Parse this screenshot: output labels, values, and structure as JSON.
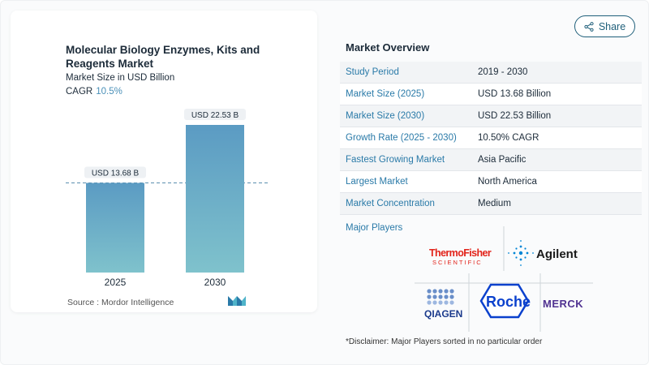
{
  "header": {
    "share_label": "Share"
  },
  "chart_panel": {
    "title": "Molecular Biology Enzymes, Kits and Reagents Market",
    "subtitle": "Market Size in USD Billion",
    "cagr_label": "CAGR",
    "cagr_value": "10.5%",
    "source": "Source :  Mordor Intelligence"
  },
  "chart_data": {
    "type": "bar",
    "categories": [
      "2025",
      "2030"
    ],
    "values": [
      13.68,
      22.53
    ],
    "data_labels": [
      "USD 13.68 B",
      "USD 22.53 B"
    ],
    "title": "Molecular Biology Enzymes, Kits and Reagents Market",
    "ylabel": "Market Size in USD Billion",
    "ylim": [
      0,
      22.53
    ],
    "grid": false,
    "reference_line_value": 13.68,
    "bar_color_top": "#5b9bc3",
    "bar_color_bottom": "#7fc2cc"
  },
  "overview": {
    "title": "Market Overview",
    "rows": [
      {
        "label": "Study Period",
        "value": "2019 - 2030"
      },
      {
        "label": "Market Size (2025)",
        "value": "USD 13.68 Billion"
      },
      {
        "label": "Market Size (2030)",
        "value": "USD 22.53 Billion"
      },
      {
        "label": "Growth Rate (2025 - 2030)",
        "value": "10.50% CAGR"
      },
      {
        "label": "Fastest Growing Market",
        "value": "Asia Pacific"
      },
      {
        "label": "Largest Market",
        "value": "North America"
      },
      {
        "label": "Market Concentration",
        "value": "Medium"
      }
    ]
  },
  "players": {
    "label": "Major Players",
    "logos": [
      "ThermoFisher SCIENTIFIC",
      "Agilent",
      "QIAGEN",
      "Roche",
      "MERCK"
    ],
    "disclaimer": "*Disclaimer: Major Players sorted in no particular order"
  },
  "colors": {
    "accent": "#2a7aa8",
    "share_border": "#1f5f7a"
  }
}
